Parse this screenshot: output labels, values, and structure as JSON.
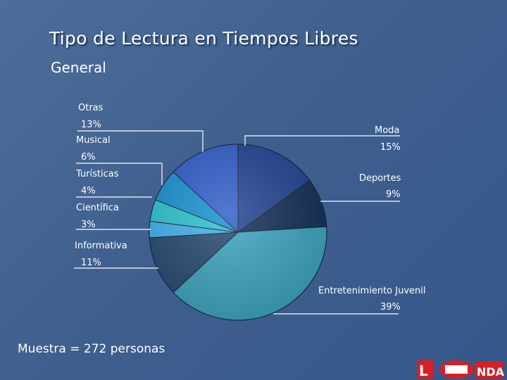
{
  "slide": {
    "title": "Tipo de Lectura en Tiempos Libres",
    "subtitle": "General",
    "footnote": "Muestra = 272 personas"
  },
  "chart_data": {
    "type": "pie",
    "title": "Tipo de Lectura en Tiempos Libres",
    "subtitle": "General",
    "start_angle_deg": 0,
    "direction": "clockwise",
    "slices": [
      {
        "label": "Moda",
        "value": 15,
        "display": "15%",
        "color": "#1f3f8f",
        "label_side": "right"
      },
      {
        "label": "Deportes",
        "value": 9,
        "display": "9%",
        "color": "#0f2b55",
        "label_side": "right"
      },
      {
        "label": "Entretenimiento Juvenil",
        "value": 39,
        "display": "39%",
        "color": "#3aa2bd",
        "label_side": "right"
      },
      {
        "label": "Informativa",
        "value": 11,
        "display": "11%",
        "color": "#24466f",
        "label_side": "left"
      },
      {
        "label": "Científica",
        "value": 3,
        "display": "3%",
        "color": "#3fb0ec",
        "label_side": "left"
      },
      {
        "label": "Turísticas",
        "value": 4,
        "display": "4%",
        "color": "#2ac2cf",
        "label_side": "left"
      },
      {
        "label": "Musical",
        "value": 6,
        "display": "6%",
        "color": "#1590cf",
        "label_side": "left"
      },
      {
        "label": "Otras",
        "value": 13,
        "display": "13%",
        "color": "#2d5bc8",
        "label_side": "left"
      }
    ],
    "legend": "none"
  }
}
